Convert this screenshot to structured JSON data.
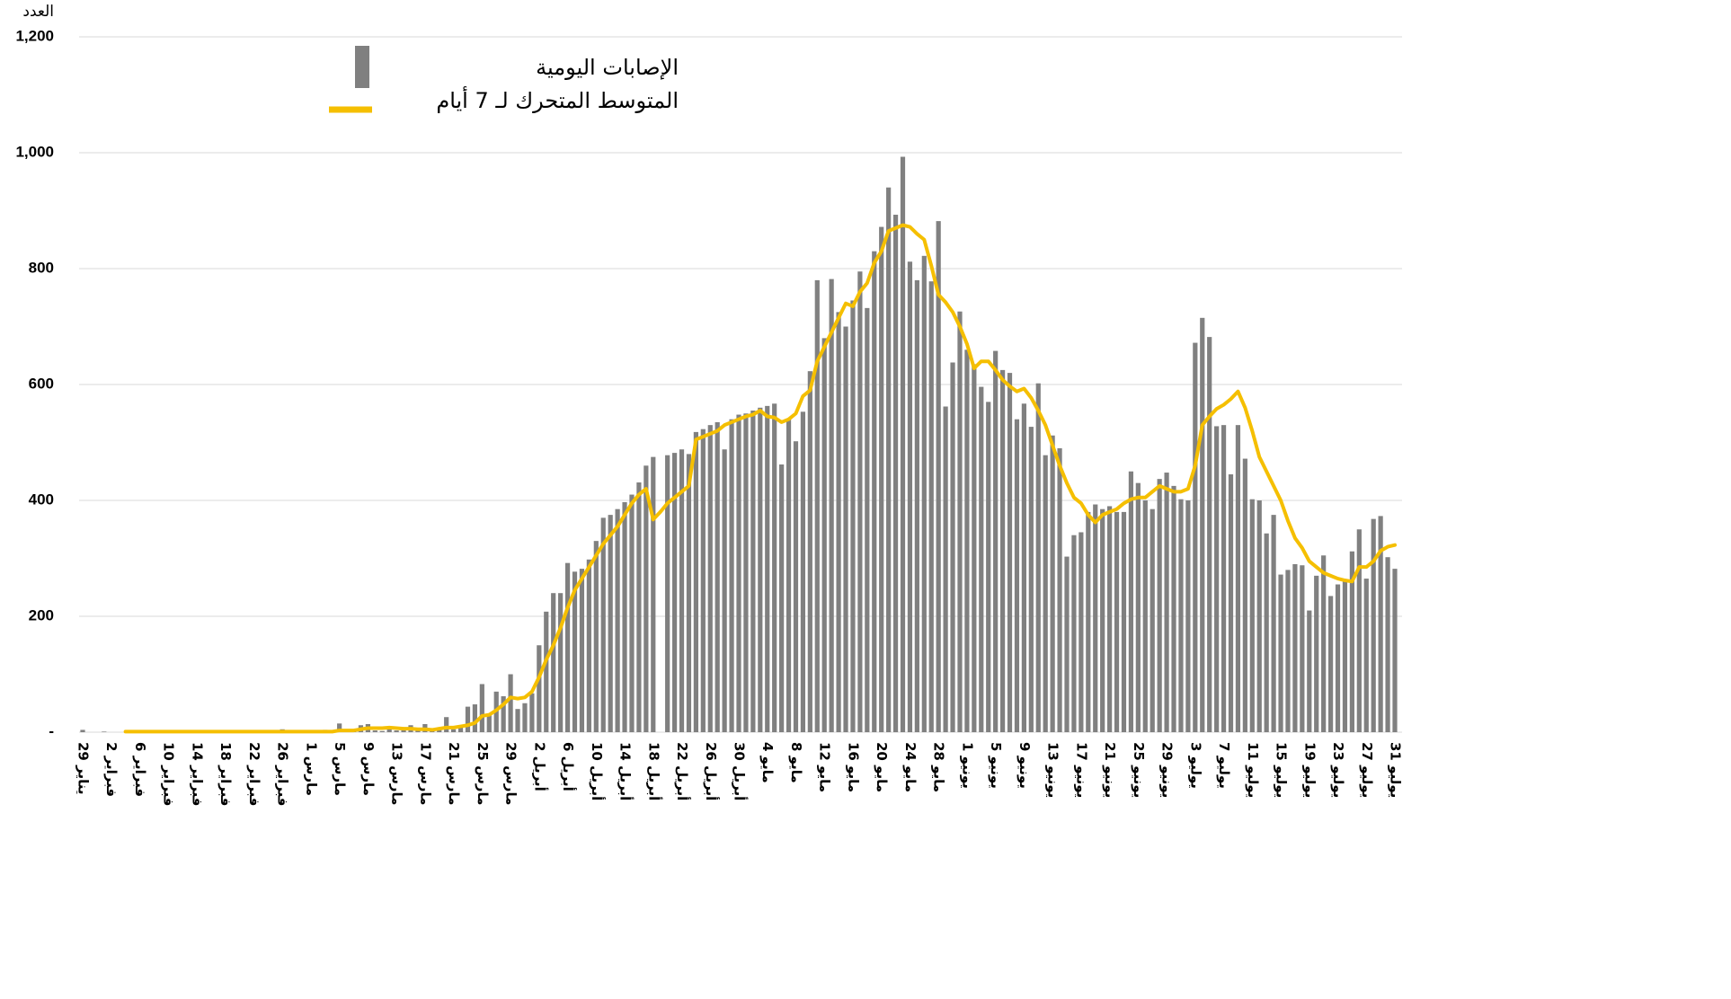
{
  "chart_data": {
    "type": "bar_line",
    "y_axis_label": "العدد",
    "categories": [
      "29 يناير",
      null,
      null,
      null,
      "2 فبراير",
      null,
      null,
      null,
      "6 فبراير",
      null,
      null,
      null,
      "10 فبراير",
      null,
      null,
      null,
      "14 فبراير",
      null,
      null,
      null,
      "18 فبراير",
      null,
      null,
      null,
      "22 فبراير",
      null,
      null,
      null,
      "26 فبراير",
      null,
      null,
      null,
      "1 مارس",
      null,
      null,
      null,
      "5 مارس",
      null,
      null,
      null,
      "9 مارس",
      null,
      null,
      null,
      "13 مارس",
      null,
      null,
      null,
      "17 مارس",
      null,
      null,
      null,
      "21 مارس",
      null,
      null,
      null,
      "25 مارس",
      null,
      null,
      null,
      "29 مارس",
      null,
      null,
      null,
      "2 أبريل",
      null,
      null,
      null,
      "6 أبريل",
      null,
      null,
      null,
      "10 أبريل",
      null,
      null,
      null,
      "14 أبريل",
      null,
      null,
      null,
      "18 أبريل",
      null,
      null,
      null,
      "22 أبريل",
      null,
      null,
      null,
      "26 أبريل",
      null,
      null,
      null,
      "30 أبريل",
      null,
      null,
      null,
      "4 مايو",
      null,
      null,
      null,
      "8 مايو",
      null,
      null,
      null,
      "12 مايو",
      null,
      null,
      null,
      "16 مايو",
      null,
      null,
      null,
      "20 مايو",
      null,
      null,
      null,
      "24 مايو",
      null,
      null,
      null,
      "28 مايو",
      null,
      null,
      null,
      "1 يونيو",
      null,
      null,
      null,
      "5 يونيو",
      null,
      null,
      null,
      "9 يونيو",
      null,
      null,
      null,
      "13 يونيو",
      null,
      null,
      null,
      "17 يونيو",
      null,
      null,
      null,
      "21 يونيو",
      null,
      null,
      null,
      "25 يونيو",
      null,
      null,
      null,
      "29 يونيو",
      null,
      null,
      null,
      "3 يوليو",
      null,
      null,
      null,
      "7 يوليو",
      null,
      null,
      null,
      "11 يوليو",
      null,
      null,
      null,
      "15 يوليو",
      null,
      null,
      null,
      "19 يوليو",
      null,
      null,
      null,
      "23 يوليو",
      null,
      null,
      null,
      "27 يوليو",
      null,
      null,
      null,
      "31 يوليو"
    ],
    "series": [
      {
        "name": "الإصابات اليومية",
        "type": "bar",
        "color": "#808080",
        "values": [
          4,
          0,
          0,
          1,
          0,
          0,
          0,
          0,
          0,
          1,
          0,
          0,
          0,
          0,
          0,
          1,
          0,
          0,
          0,
          0,
          0,
          1,
          0,
          0,
          0,
          0,
          0,
          1,
          5,
          1,
          2,
          3,
          1,
          2,
          4,
          1,
          15,
          2,
          3,
          12,
          14,
          3,
          2,
          5,
          3,
          6,
          12,
          5,
          14,
          2,
          7,
          26,
          5,
          10,
          44,
          48,
          83,
          30,
          70,
          62,
          100,
          40,
          50,
          67,
          150,
          208,
          240,
          240,
          292,
          277,
          282,
          298,
          330,
          370,
          375,
          385,
          397,
          410,
          431,
          460,
          475,
          0,
          478,
          482,
          488,
          480,
          518,
          523,
          530,
          535,
          488,
          540,
          548,
          550,
          555,
          560,
          563,
          567,
          462,
          540,
          502,
          553,
          623,
          780,
          680,
          782,
          725,
          700,
          745,
          795,
          732,
          830,
          872,
          940,
          893,
          993,
          812,
          780,
          822,
          778,
          882,
          562,
          638,
          726,
          660,
          635,
          596,
          570,
          658,
          625,
          620,
          540,
          567,
          527,
          602,
          478,
          512,
          490,
          303,
          340,
          345,
          380,
          393,
          385,
          390,
          380,
          380,
          450,
          430,
          400,
          385,
          437,
          448,
          425,
          402,
          400,
          672,
          715,
          682,
          528,
          530,
          445,
          530,
          472,
          402,
          400,
          343,
          375,
          272,
          280,
          290,
          288,
          210,
          270,
          305,
          235,
          255,
          260,
          312,
          350,
          265,
          368,
          373,
          302,
          282
        ]
      },
      {
        "name": "المتوسط المتحرك لـ 7 أيام",
        "type": "line",
        "color": "#f5bf00",
        "values": [
          null,
          null,
          null,
          null,
          null,
          null,
          1,
          1,
          1,
          1,
          1,
          1,
          1,
          1,
          1,
          1,
          1,
          1,
          1,
          1,
          1,
          1,
          1,
          1,
          1,
          1,
          1,
          1,
          1,
          1,
          1,
          1,
          1,
          1,
          1,
          1,
          3,
          3,
          3,
          5,
          7,
          7,
          7,
          8,
          7,
          6,
          6,
          5,
          5,
          4,
          6,
          8,
          8,
          10,
          12,
          16,
          28,
          30,
          38,
          48,
          60,
          58,
          60,
          70,
          95,
          125,
          150,
          180,
          215,
          245,
          265,
          285,
          305,
          325,
          340,
          355,
          375,
          395,
          410,
          420,
          367,
          380,
          395,
          405,
          415,
          425,
          505,
          510,
          515,
          520,
          530,
          535,
          540,
          545,
          548,
          555,
          545,
          543,
          535,
          540,
          550,
          580,
          590,
          640,
          665,
          690,
          715,
          740,
          735,
          760,
          775,
          810,
          830,
          865,
          870,
          875,
          872,
          860,
          850,
          805,
          755,
          742,
          725,
          700,
          670,
          628,
          640,
          640,
          625,
          608,
          597,
          588,
          593,
          577,
          555,
          530,
          495,
          460,
          430,
          405,
          395,
          375,
          362,
          375,
          380,
          385,
          395,
          402,
          405,
          405,
          415,
          425,
          420,
          415,
          415,
          420,
          460,
          530,
          545,
          558,
          565,
          575,
          588,
          560,
          520,
          475,
          450,
          425,
          400,
          365,
          335,
          318,
          295,
          285,
          275,
          270,
          265,
          262,
          260,
          285,
          285,
          295,
          313,
          320,
          323
        ]
      }
    ],
    "ylim": [
      0,
      1200
    ],
    "yticks": [
      {
        "value": 0,
        "label": "-"
      },
      200,
      400,
      600,
      800,
      {
        "value": 1000,
        "label": "1,000"
      },
      {
        "value": 1200,
        "label": "1,200"
      }
    ],
    "grid": true
  }
}
